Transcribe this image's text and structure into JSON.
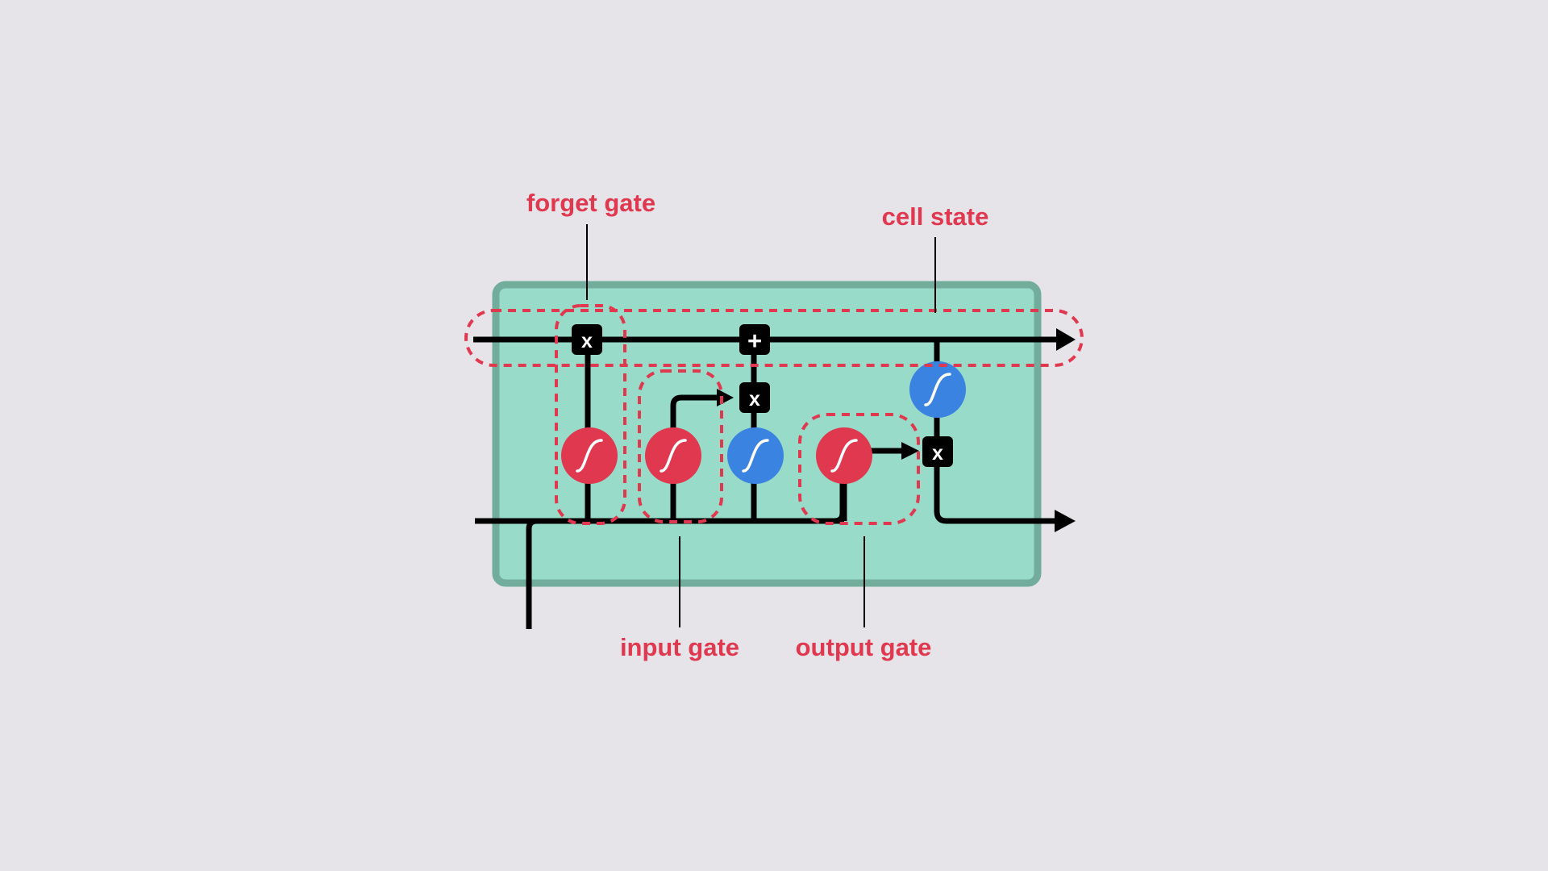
{
  "labels": {
    "forget_gate": "forget gate",
    "cell_state": "cell state",
    "input_gate": "input gate",
    "output_gate": "output gate"
  },
  "ops": {
    "multiply": "x",
    "add": "+"
  },
  "colors": {
    "background": "#e6e4e8",
    "cell_fill": "#97dbc8",
    "cell_border": "#72ad9c",
    "annotation": "#e0384f",
    "sigmoid": "#e0384f",
    "tanh": "#3a83e0",
    "line": "#000000"
  }
}
